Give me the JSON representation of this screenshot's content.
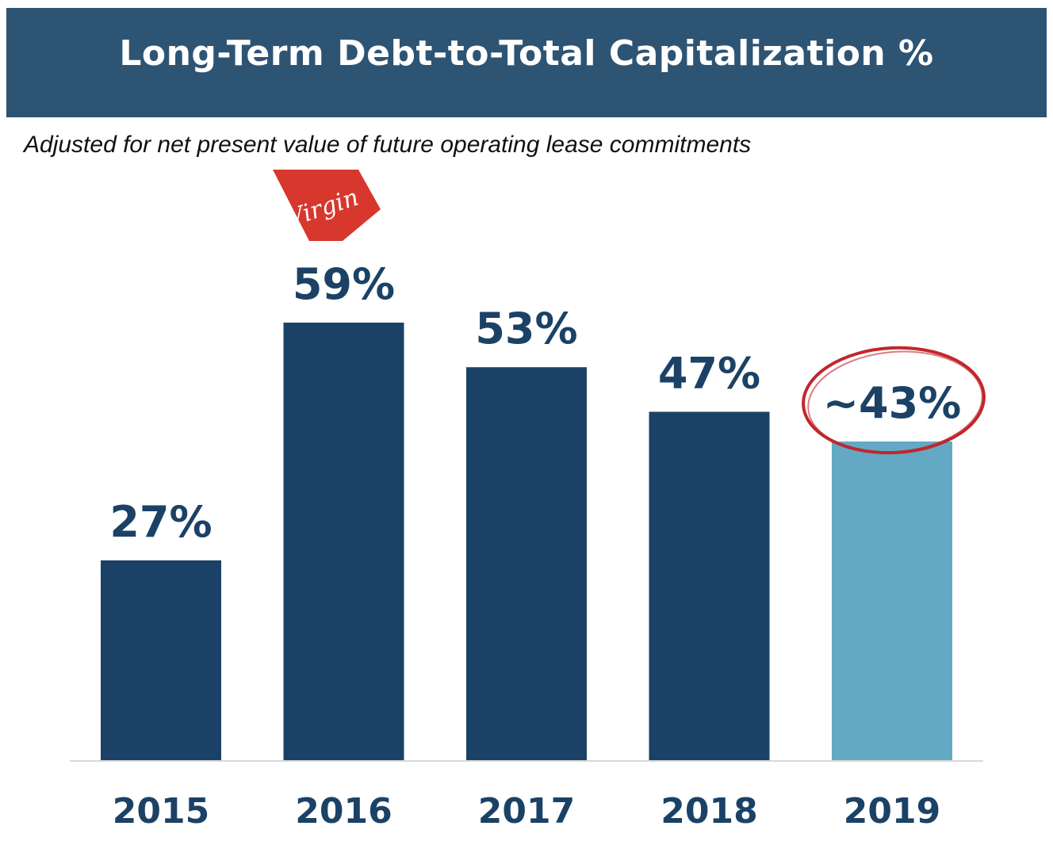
{
  "header": {
    "title": "Long-Term Debt-to-Total Capitalization %"
  },
  "subtitle": "Adjusted for net present value of future operating lease commitments",
  "logo": {
    "text": "Virgin",
    "color": "#d8372e"
  },
  "highlight": {
    "category": "2019",
    "circle_color": "#c1272d"
  },
  "colors": {
    "header_bg": "#2e5474",
    "bar_primary": "#1b4266",
    "bar_highlight": "#63a9c4",
    "label_text": "#1b4266",
    "axis_line": "#d9d9d9"
  },
  "chart_data": {
    "type": "bar",
    "title": "Long-Term Debt-to-Total Capitalization %",
    "subtitle": "Adjusted for net present value of future operating lease commitments",
    "categories": [
      "2015",
      "2016",
      "2017",
      "2018",
      "2019"
    ],
    "values": [
      27,
      59,
      53,
      47,
      43
    ],
    "data_labels": [
      "27%",
      "59%",
      "53%",
      "47%",
      "~43%"
    ],
    "highlighted": [
      false,
      false,
      false,
      false,
      true
    ],
    "ylim": [
      0,
      59
    ],
    "grid": false,
    "legend": "none"
  }
}
